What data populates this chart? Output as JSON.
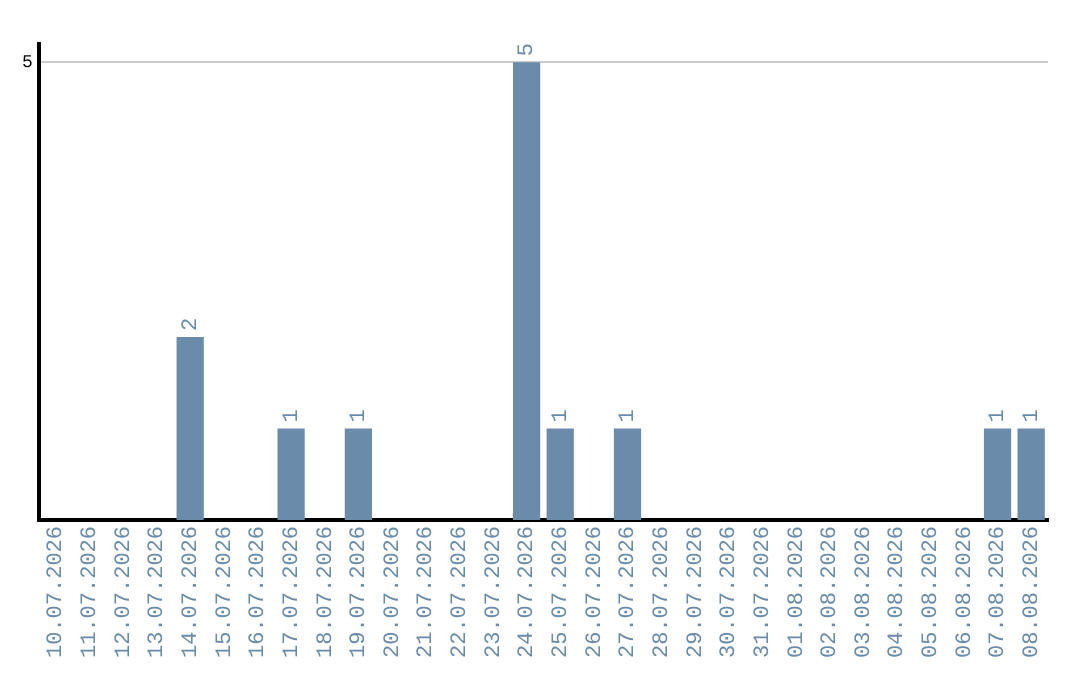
{
  "chart_data": {
    "type": "bar",
    "categories": [
      "10.07.2026",
      "11.07.2026",
      "12.07.2026",
      "13.07.2026",
      "14.07.2026",
      "15.07.2026",
      "16.07.2026",
      "17.07.2026",
      "18.07.2026",
      "19.07.2026",
      "20.07.2026",
      "21.07.2026",
      "22.07.2026",
      "23.07.2026",
      "24.07.2026",
      "25.07.2026",
      "26.07.2026",
      "27.07.2026",
      "28.07.2026",
      "29.07.2026",
      "30.07.2026",
      "31.07.2026",
      "01.08.2026",
      "02.08.2026",
      "03.08.2026",
      "04.08.2026",
      "05.08.2026",
      "06.08.2026",
      "07.08.2026",
      "08.08.2026"
    ],
    "values": [
      0,
      0,
      0,
      0,
      2,
      0,
      0,
      1,
      0,
      1,
      0,
      0,
      0,
      0,
      5,
      1,
      0,
      1,
      0,
      0,
      0,
      0,
      0,
      0,
      0,
      0,
      0,
      0,
      1,
      1
    ],
    "value_labels": [
      null,
      null,
      null,
      null,
      "2",
      null,
      null,
      "1",
      null,
      "1",
      null,
      null,
      null,
      null,
      "5",
      "1",
      null,
      "1",
      null,
      null,
      null,
      null,
      null,
      null,
      null,
      null,
      null,
      null,
      "1",
      "1"
    ],
    "color": "#6a8caa",
    "ylim": [
      0,
      5.2
    ],
    "yticks": [
      5
    ],
    "grid": "y",
    "legend": false
  }
}
